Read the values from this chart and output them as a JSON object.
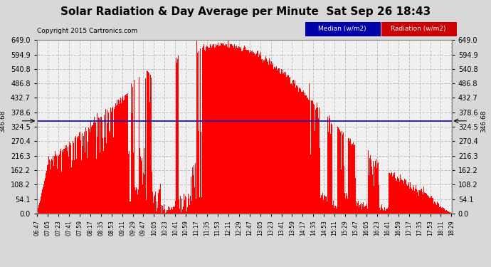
{
  "title": "Solar Radiation & Day Average per Minute  Sat Sep 26 18:43",
  "copyright": "Copyright 2015 Cartronics.com",
  "legend_median": "Median (w/m2)",
  "legend_radiation": "Radiation (w/m2)",
  "median_value": 346.68,
  "ymax": 649.0,
  "ymin": 0.0,
  "yticks": [
    0.0,
    54.1,
    108.2,
    162.2,
    216.3,
    270.4,
    324.5,
    378.6,
    432.7,
    486.8,
    540.8,
    594.9,
    649.0
  ],
  "ytick_labels": [
    "0.0",
    "54.1",
    "108.2",
    "162.2",
    "216.3",
    "270.4",
    "324.5",
    "378.6",
    "432.7",
    "486.8",
    "540.8",
    "594.9",
    "649.0"
  ],
  "xtick_labels": [
    "06:47",
    "07:05",
    "07:23",
    "07:41",
    "07:59",
    "08:17",
    "08:35",
    "08:53",
    "09:11",
    "09:29",
    "09:47",
    "10:05",
    "10:23",
    "10:41",
    "10:59",
    "11:17",
    "11:35",
    "11:53",
    "12:11",
    "12:29",
    "12:47",
    "13:05",
    "13:23",
    "13:41",
    "13:59",
    "14:17",
    "14:35",
    "14:53",
    "15:11",
    "15:29",
    "15:47",
    "16:05",
    "16:23",
    "16:41",
    "16:59",
    "17:17",
    "17:35",
    "17:53",
    "18:11",
    "18:29"
  ],
  "bg_color": "#d8d8d8",
  "plot_bg_color": "#f0f0f0",
  "bar_color": "#ff0000",
  "median_color": "#0000cc",
  "grid_color": "#c0c0c0",
  "title_color": "#000000",
  "title_fontsize": 11,
  "median_label": "346.68"
}
